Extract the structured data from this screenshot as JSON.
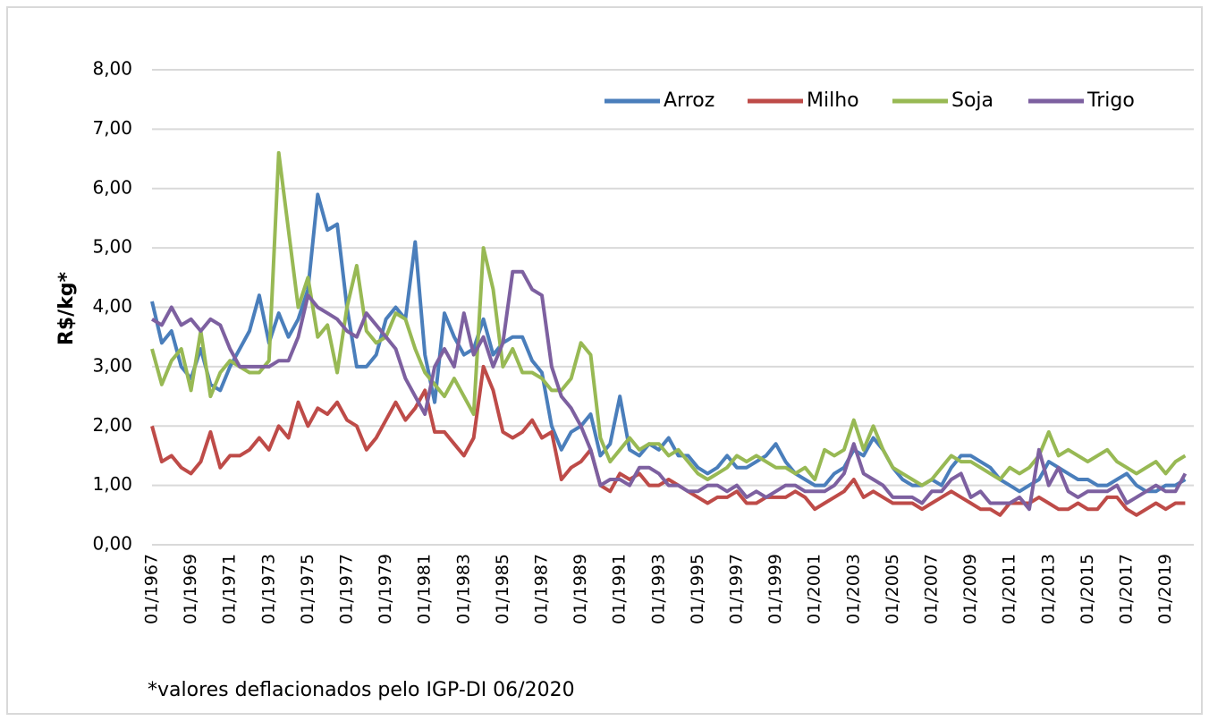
{
  "chart_data": {
    "type": "line",
    "y_label": "R$/kg*",
    "note": "*valores deflacionados pelo IGP-DI 06/2020",
    "categories": [
      "01/1967",
      null,
      null,
      null,
      "01/1969",
      null,
      null,
      null,
      "01/1971",
      null,
      null,
      null,
      "01/1973",
      null,
      null,
      null,
      "01/1975",
      null,
      null,
      null,
      "01/1977",
      null,
      null,
      null,
      "01/1979",
      null,
      null,
      null,
      "01/1981",
      null,
      null,
      null,
      "01/1983",
      null,
      null,
      null,
      "01/1985",
      null,
      null,
      null,
      "01/1987",
      null,
      null,
      null,
      "01/1989",
      null,
      null,
      null,
      "01/1991",
      null,
      null,
      null,
      "01/1993",
      null,
      null,
      null,
      "01/1995",
      null,
      null,
      null,
      "01/1997",
      null,
      null,
      null,
      "01/1999",
      null,
      null,
      null,
      "01/2001",
      null,
      null,
      null,
      "01/2003",
      null,
      null,
      null,
      "01/2005",
      null,
      null,
      null,
      "01/2007",
      null,
      null,
      null,
      "01/2009",
      null,
      null,
      null,
      "01/2011",
      null,
      null,
      null,
      "01/2013",
      null,
      null,
      null,
      "01/2015",
      null,
      null,
      null,
      "01/2017",
      null,
      null,
      null,
      "01/2019",
      null,
      null
    ],
    "series": [
      {
        "name": "Arroz",
        "color": "#4a7ebb",
        "values": [
          4.1,
          3.4,
          3.6,
          3.0,
          2.8,
          3.3,
          2.7,
          2.6,
          3.0,
          3.3,
          3.6,
          4.2,
          3.4,
          3.9,
          3.5,
          3.8,
          4.3,
          5.9,
          5.3,
          5.4,
          4.0,
          3.0,
          3.0,
          3.2,
          3.8,
          4.0,
          3.8,
          5.1,
          3.2,
          2.4,
          3.9,
          3.5,
          3.2,
          3.3,
          3.8,
          3.2,
          3.4,
          3.5,
          3.5,
          3.1,
          2.9,
          2.0,
          1.6,
          1.9,
          2.0,
          2.2,
          1.5,
          1.7,
          2.5,
          1.6,
          1.5,
          1.7,
          1.6,
          1.8,
          1.5,
          1.5,
          1.3,
          1.2,
          1.3,
          1.5,
          1.3,
          1.3,
          1.4,
          1.5,
          1.7,
          1.4,
          1.2,
          1.1,
          1.0,
          1.0,
          1.2,
          1.3,
          1.6,
          1.5,
          1.8,
          1.6,
          1.3,
          1.1,
          1.0,
          1.0,
          1.1,
          1.0,
          1.3,
          1.5,
          1.5,
          1.4,
          1.3,
          1.1,
          1.0,
          0.9,
          1.0,
          1.1,
          1.4,
          1.3,
          1.2,
          1.1,
          1.1,
          1.0,
          1.0,
          1.1,
          1.2,
          1.0,
          0.9,
          0.9,
          1.0,
          1.0,
          1.1
        ]
      },
      {
        "name": "Milho",
        "color": "#be4b48",
        "values": [
          2.0,
          1.4,
          1.5,
          1.3,
          1.2,
          1.4,
          1.9,
          1.3,
          1.5,
          1.5,
          1.6,
          1.8,
          1.6,
          2.0,
          1.8,
          2.4,
          2.0,
          2.3,
          2.2,
          2.4,
          2.1,
          2.0,
          1.6,
          1.8,
          2.1,
          2.4,
          2.1,
          2.3,
          2.6,
          1.9,
          1.9,
          1.7,
          1.5,
          1.8,
          3.0,
          2.6,
          1.9,
          1.8,
          1.9,
          2.1,
          1.8,
          1.9,
          1.1,
          1.3,
          1.4,
          1.6,
          1.0,
          0.9,
          1.2,
          1.1,
          1.2,
          1.0,
          1.0,
          1.1,
          1.0,
          0.9,
          0.8,
          0.7,
          0.8,
          0.8,
          0.9,
          0.7,
          0.7,
          0.8,
          0.8,
          0.8,
          0.9,
          0.8,
          0.6,
          0.7,
          0.8,
          0.9,
          1.1,
          0.8,
          0.9,
          0.8,
          0.7,
          0.7,
          0.7,
          0.6,
          0.7,
          0.8,
          0.9,
          0.8,
          0.7,
          0.6,
          0.6,
          0.5,
          0.7,
          0.7,
          0.7,
          0.8,
          0.7,
          0.6,
          0.6,
          0.7,
          0.6,
          0.6,
          0.8,
          0.8,
          0.6,
          0.5,
          0.6,
          0.7,
          0.6,
          0.7,
          0.7
        ]
      },
      {
        "name": "Soja",
        "color": "#98b954",
        "values": [
          3.3,
          2.7,
          3.1,
          3.3,
          2.6,
          3.6,
          2.5,
          2.9,
          3.1,
          3.0,
          2.9,
          2.9,
          3.1,
          6.6,
          5.3,
          4.0,
          4.5,
          3.5,
          3.7,
          2.9,
          4.0,
          4.7,
          3.6,
          3.4,
          3.5,
          3.9,
          3.8,
          3.3,
          2.9,
          2.7,
          2.5,
          2.8,
          2.5,
          2.2,
          5.0,
          4.3,
          3.0,
          3.3,
          2.9,
          2.9,
          2.8,
          2.6,
          2.6,
          2.8,
          3.4,
          3.2,
          1.8,
          1.4,
          1.6,
          1.8,
          1.6,
          1.7,
          1.7,
          1.5,
          1.6,
          1.4,
          1.2,
          1.1,
          1.2,
          1.3,
          1.5,
          1.4,
          1.5,
          1.4,
          1.3,
          1.3,
          1.2,
          1.3,
          1.1,
          1.6,
          1.5,
          1.6,
          2.1,
          1.6,
          2.0,
          1.6,
          1.3,
          1.2,
          1.1,
          1.0,
          1.1,
          1.3,
          1.5,
          1.4,
          1.4,
          1.3,
          1.2,
          1.1,
          1.3,
          1.2,
          1.3,
          1.5,
          1.9,
          1.5,
          1.6,
          1.5,
          1.4,
          1.5,
          1.6,
          1.4,
          1.3,
          1.2,
          1.3,
          1.4,
          1.2,
          1.4,
          1.5
        ]
      },
      {
        "name": "Trigo",
        "color": "#7d60a0",
        "values": [
          3.8,
          3.7,
          4.0,
          3.7,
          3.8,
          3.6,
          3.8,
          3.7,
          3.3,
          3.0,
          3.0,
          3.0,
          3.0,
          3.1,
          3.1,
          3.5,
          4.2,
          4.0,
          3.9,
          3.8,
          3.6,
          3.5,
          3.9,
          3.7,
          3.5,
          3.3,
          2.8,
          2.5,
          2.2,
          3.0,
          3.3,
          3.0,
          3.9,
          3.2,
          3.5,
          3.0,
          3.4,
          4.6,
          4.6,
          4.3,
          4.2,
          3.0,
          2.5,
          2.3,
          2.0,
          1.6,
          1.0,
          1.1,
          1.1,
          1.0,
          1.3,
          1.3,
          1.2,
          1.0,
          1.0,
          0.9,
          0.9,
          1.0,
          1.0,
          0.9,
          1.0,
          0.8,
          0.9,
          0.8,
          0.9,
          1.0,
          1.0,
          0.9,
          0.9,
          0.9,
          1.0,
          1.2,
          1.7,
          1.2,
          1.1,
          1.0,
          0.8,
          0.8,
          0.8,
          0.7,
          0.9,
          0.9,
          1.1,
          1.2,
          0.8,
          0.9,
          0.7,
          0.7,
          0.7,
          0.8,
          0.6,
          1.6,
          1.0,
          1.3,
          0.9,
          0.8,
          0.9,
          0.9,
          0.9,
          1.0,
          0.7,
          0.8,
          0.9,
          1.0,
          0.9,
          0.9,
          1.2
        ]
      }
    ],
    "ylim": [
      0,
      8
    ],
    "yticks": [
      {
        "value": 0,
        "label": "0,00"
      },
      {
        "value": 1,
        "label": "1,00"
      },
      {
        "value": 2,
        "label": "2,00"
      },
      {
        "value": 3,
        "label": "3,00"
      },
      {
        "value": 4,
        "label": "4,00"
      },
      {
        "value": 5,
        "label": "5,00"
      },
      {
        "value": 6,
        "label": "6,00"
      },
      {
        "value": 7,
        "label": "7,00"
      },
      {
        "value": 8,
        "label": "8,00"
      }
    ],
    "grid": true
  }
}
